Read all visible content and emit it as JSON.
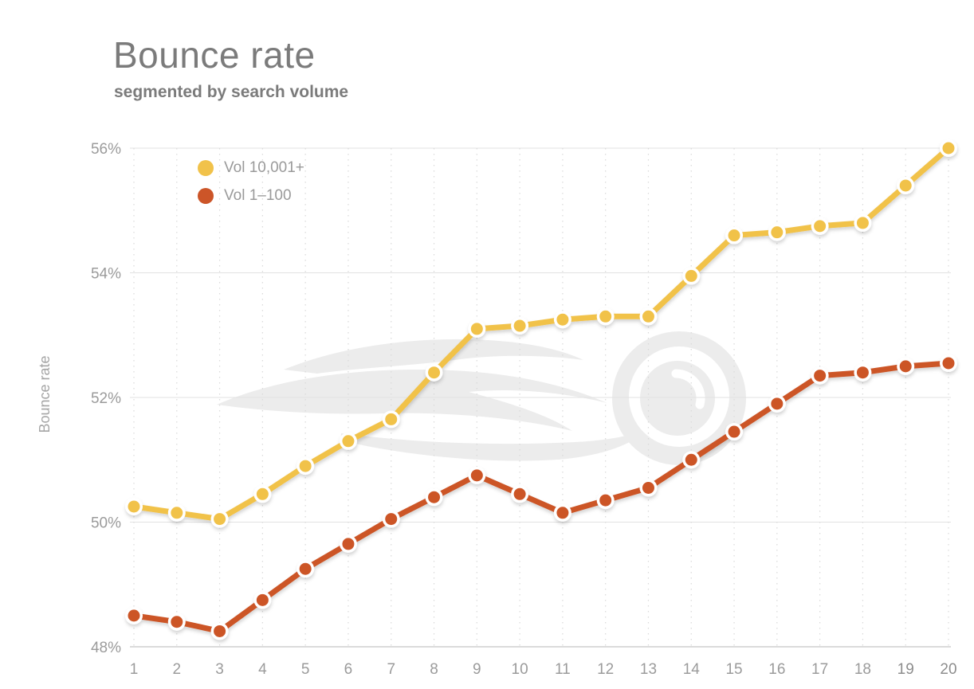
{
  "header": {
    "title": "Bounce rate",
    "subtitle": "segmented by search volume"
  },
  "chart_data": {
    "type": "line",
    "title": "Bounce rate",
    "subtitle": "segmented by search volume",
    "xlabel": "",
    "ylabel": "Bounce rate",
    "ylim": [
      48,
      56
    ],
    "ytick_values": [
      48,
      50,
      52,
      54,
      56
    ],
    "ytick_labels": [
      "48%",
      "50%",
      "52%",
      "54%",
      "56%"
    ],
    "x": [
      1,
      2,
      3,
      4,
      5,
      6,
      7,
      8,
      9,
      10,
      11,
      12,
      13,
      14,
      15,
      16,
      17,
      18,
      19,
      20
    ],
    "series": [
      {
        "name": "Vol 10,001+",
        "color": "#F1C24A",
        "values": [
          50.25,
          50.15,
          50.05,
          50.45,
          50.9,
          51.3,
          51.65,
          52.4,
          53.1,
          53.15,
          53.25,
          53.3,
          53.3,
          53.95,
          54.6,
          54.65,
          54.75,
          54.8,
          55.4,
          56.0
        ]
      },
      {
        "name": "Vol 1–100",
        "color": "#CC5528",
        "values": [
          48.5,
          48.4,
          48.25,
          48.75,
          49.25,
          49.65,
          50.05,
          50.4,
          50.75,
          50.45,
          50.15,
          50.35,
          50.55,
          51.0,
          51.45,
          51.9,
          52.35,
          52.4,
          52.5,
          52.55
        ]
      }
    ],
    "grid": {
      "horizontal": "solid",
      "vertical": "dashed"
    },
    "legend_position": "top-left-inside",
    "watermark": "semrush-flame-logo",
    "colors": {
      "axis_text": "#9b9b9b",
      "grid_solid": "#e2e2e2",
      "grid_bottom": "#cfcfcf",
      "grid_dashed": "#d9d9d9",
      "watermark": "#ececec",
      "title_text": "#7b7b7b"
    }
  }
}
